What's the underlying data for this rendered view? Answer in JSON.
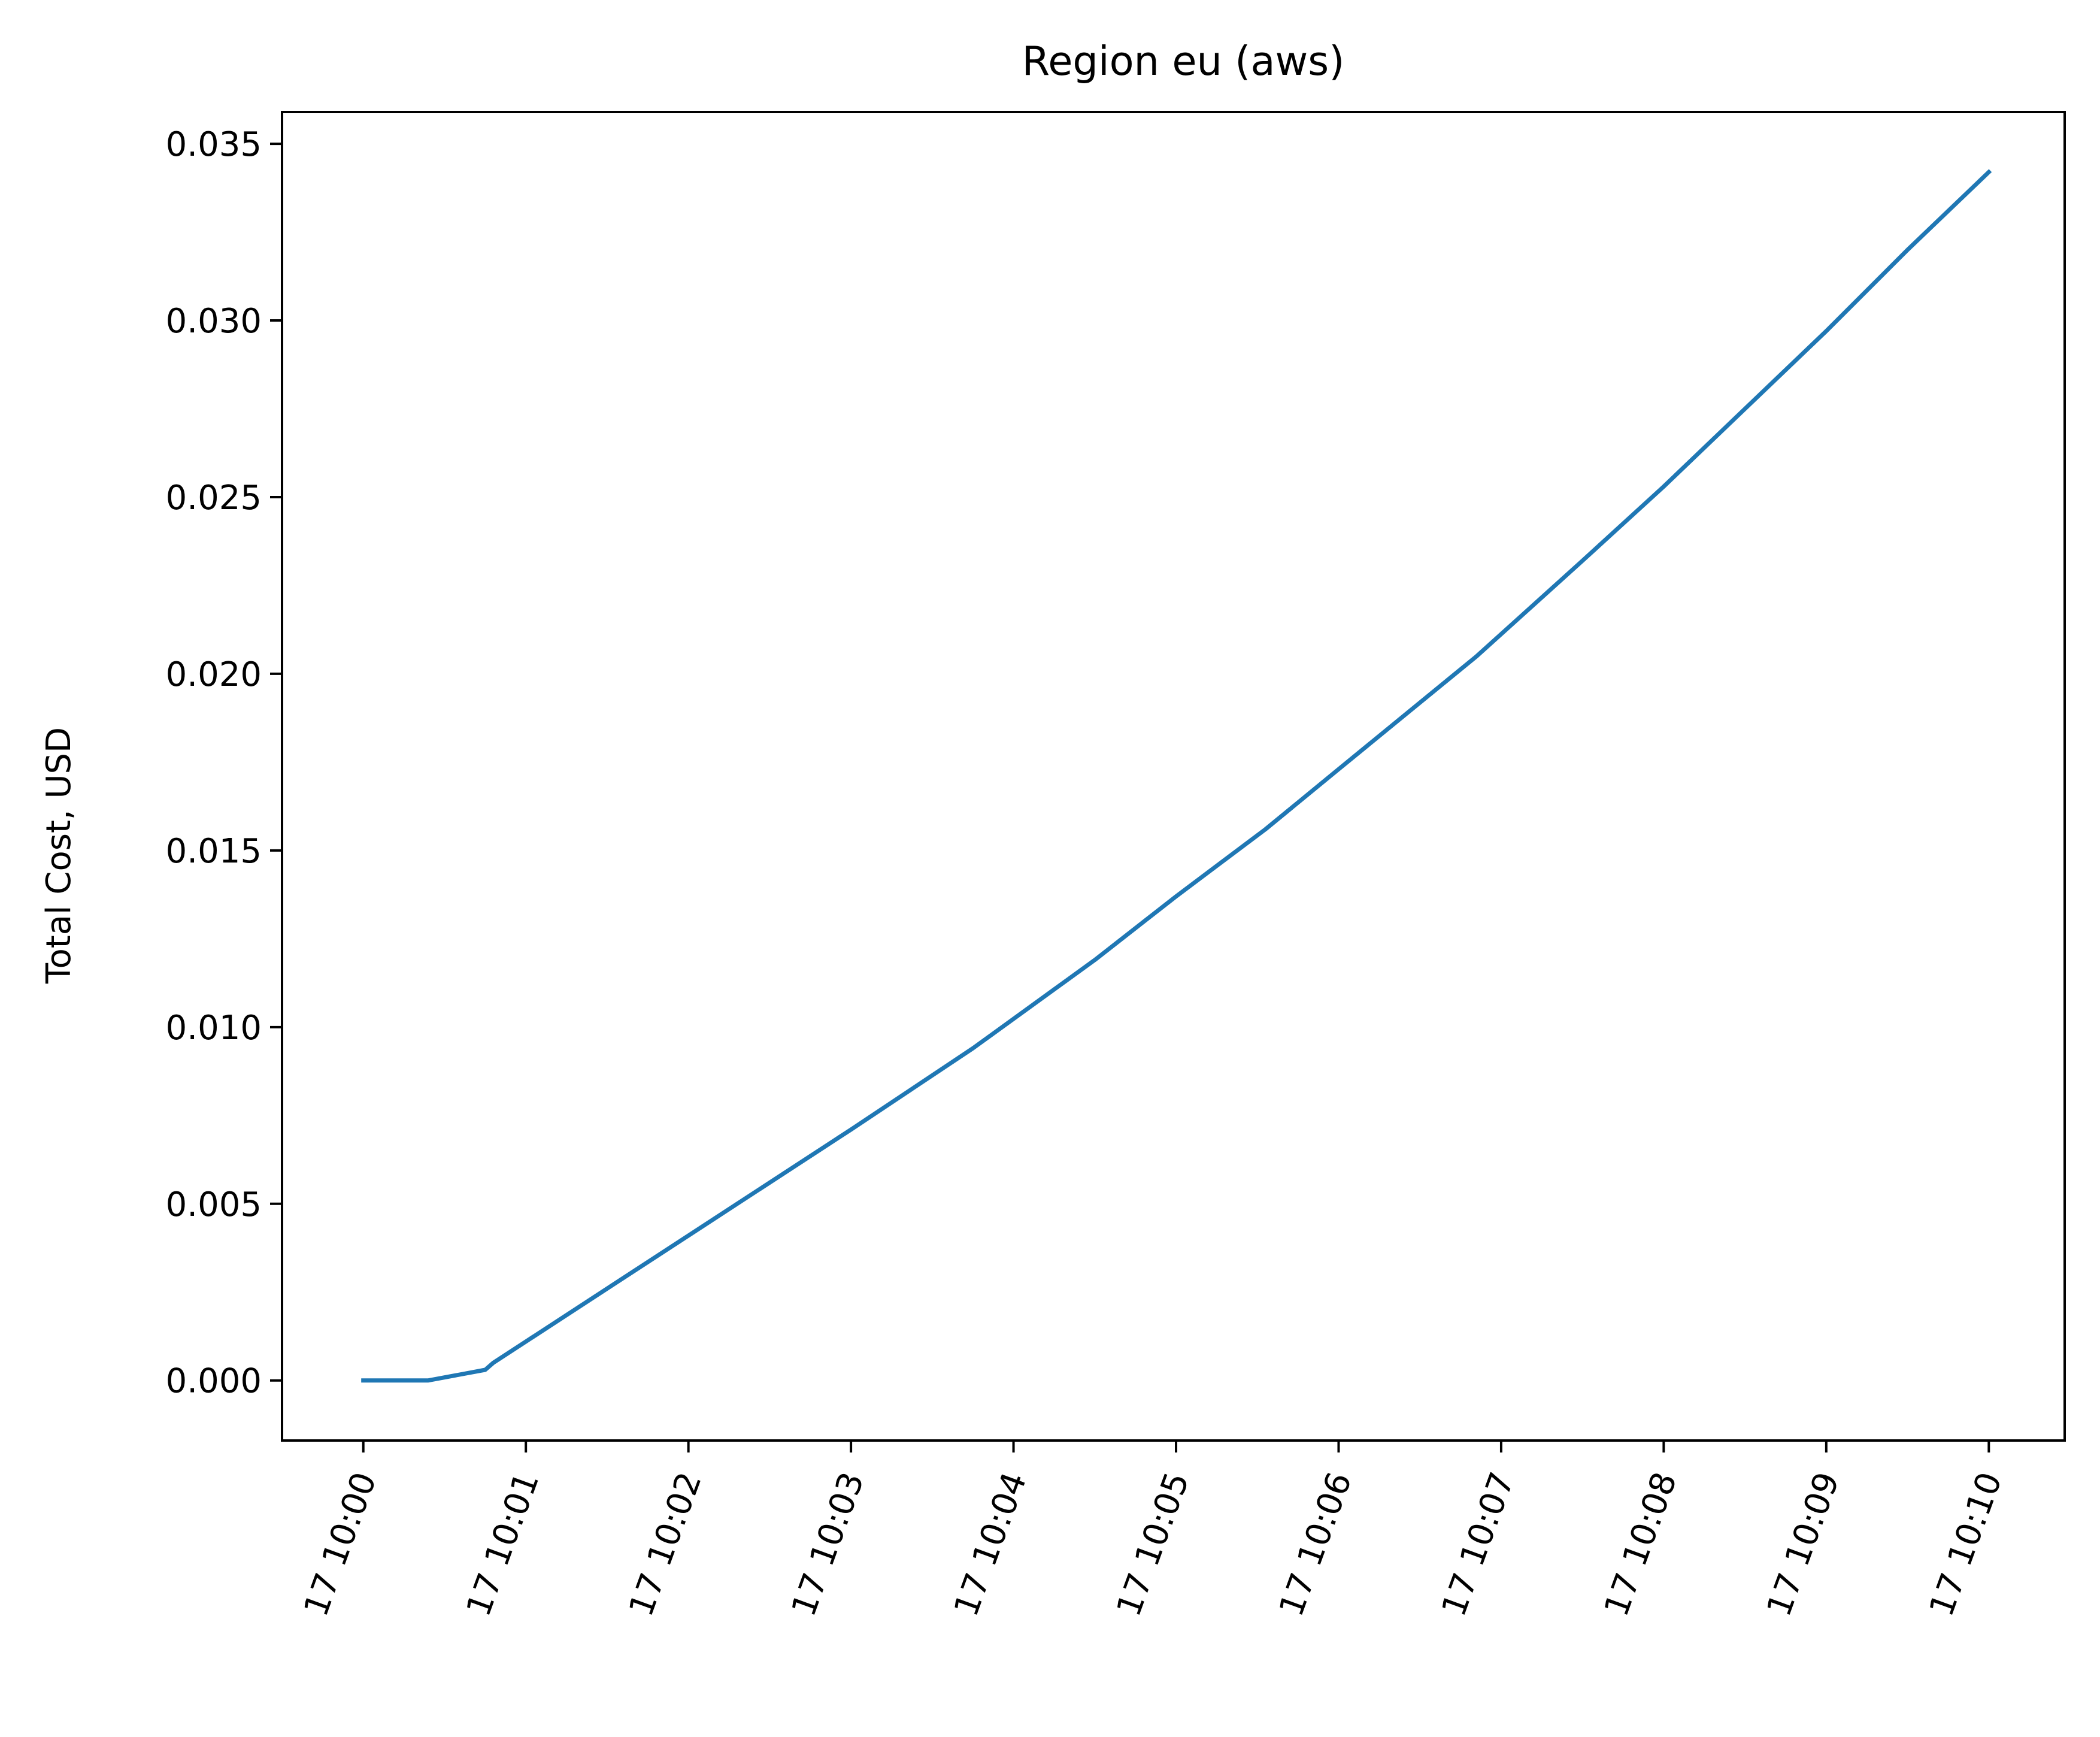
{
  "chart_data": {
    "type": "line",
    "title": "Region eu (aws)",
    "xlabel": "",
    "ylabel": "Total Cost, USD",
    "x_ticks": [
      "17 10:00",
      "17 10:01",
      "17 10:02",
      "17 10:03",
      "17 10:04",
      "17 10:05",
      "17 10:06",
      "17 10:07",
      "17 10:08",
      "17 10:09",
      "17 10:10"
    ],
    "y_ticks": [
      "0.000",
      "0.005",
      "0.010",
      "0.015",
      "0.020",
      "0.025",
      "0.030",
      "0.035"
    ],
    "xlim": [
      "17 09:59:30",
      "17 10:10:28"
    ],
    "ylim": [
      -0.0017,
      0.0359
    ],
    "grid": false,
    "series": [
      {
        "color": "#1f77b4",
        "x": [
          "17 10:00:00",
          "17 10:00:24",
          "17 10:00:45",
          "17 10:00:48",
          "17 10:01:00",
          "17 10:02:00",
          "17 10:03:00",
          "17 10:03:45",
          "17 10:04:30",
          "17 10:05:00",
          "17 10:05:33",
          "17 10:06:00",
          "17 10:06:51",
          "17 10:07:30",
          "17 10:08:00",
          "17 10:08:30",
          "17 10:09:00",
          "17 10:09:30",
          "17 10:10:00"
        ],
        "y": [
          0.0,
          0.0,
          0.0003,
          0.0005,
          0.0011,
          0.0041,
          0.0071,
          0.0094,
          0.0119,
          0.0137,
          0.0156,
          0.0173,
          0.0205,
          0.0232,
          0.0253,
          0.0275,
          0.0297,
          0.032,
          0.0342
        ]
      }
    ]
  }
}
